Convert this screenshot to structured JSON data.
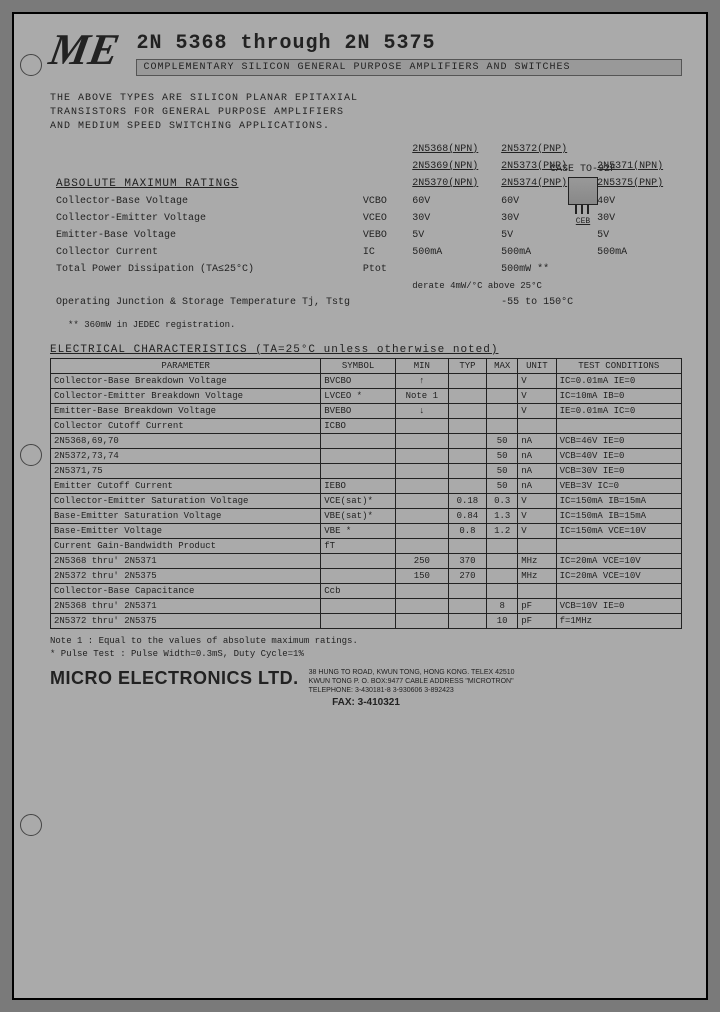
{
  "logo_text": "ME",
  "title": "2N 5368  through  2N 5375",
  "subtitle": "COMPLEMENTARY SILICON GENERAL PURPOSE AMPLIFIERS AND SWITCHES",
  "intro_line1": "THE ABOVE TYPES ARE SILICON PLANAR EPITAXIAL",
  "intro_line2": "TRANSISTORS FOR GENERAL PURPOSE AMPLIFIERS",
  "intro_line3": "AND MEDIUM SPEED SWITCHING APPLICATIONS.",
  "case_label": "CASE TO-92F",
  "case_pins": "CEB",
  "ratings": {
    "title": "ABSOLUTE MAXIMUM RATINGS",
    "groups": {
      "g1a": "2N5368(NPN)",
      "g1b": "2N5369(NPN)",
      "g1c": "2N5370(NPN)",
      "g2a": "2N5372(PNP)",
      "g2b": "2N5373(PNP)",
      "g2c": "2N5374(PNP)",
      "g3a": "2N5371(NPN)",
      "g3b": "2N5375(PNP)"
    },
    "rows": [
      {
        "label": "Collector-Base Voltage",
        "sym": "VCBO",
        "v1": "60V",
        "v2": "60V",
        "v3": "40V"
      },
      {
        "label": "Collector-Emitter Voltage",
        "sym": "VCEO",
        "v1": "30V",
        "v2": "30V",
        "v3": "30V"
      },
      {
        "label": "Emitter-Base Voltage",
        "sym": "VEBO",
        "v1": "5V",
        "v2": "5V",
        "v3": "5V"
      },
      {
        "label": "Collector Current",
        "sym": "IC",
        "v1": "500mA",
        "v2": "500mA",
        "v3": "500mA"
      }
    ],
    "power_label": "Total Power Dissipation (TA≤25°C)",
    "power_sym": "Ptot",
    "power_val": "500mW **",
    "power_derate": "derate 4mW/°C above 25°C",
    "temp_label": "Operating Junction & Storage Temperature Tj, Tstg",
    "temp_val": "-55 to 150°C",
    "footnote": "** 360mW in JEDEC registration."
  },
  "elec": {
    "title": "ELECTRICAL CHARACTERISTICS  (TA=25°C  unless otherwise noted)",
    "head": {
      "param": "PARAMETER",
      "sym": "SYMBOL",
      "min": "MIN",
      "typ": "TYP",
      "max": "MAX",
      "unit": "UNIT",
      "cond": "TEST CONDITIONS"
    },
    "rows": [
      {
        "p": "Collector-Base Breakdown Voltage",
        "s": "BVCBO",
        "min": "↑",
        "typ": "",
        "max": "",
        "u": "V",
        "c": "IC=0.01mA  IE=0"
      },
      {
        "p": "Collector-Emitter Breakdown Voltage",
        "s": "LVCEO *",
        "min": "Note 1",
        "typ": "",
        "max": "",
        "u": "V",
        "c": "IC=10mA   IB=0"
      },
      {
        "p": "Emitter-Base Breakdown Voltage",
        "s": "BVEBO",
        "min": "↓",
        "typ": "",
        "max": "",
        "u": "V",
        "c": "IE=0.01mA IC=0"
      },
      {
        "p": "Collector Cutoff Current",
        "s": "ICBO",
        "min": "",
        "typ": "",
        "max": "",
        "u": "",
        "c": ""
      },
      {
        "p": "            2N5368,69,70",
        "s": "",
        "min": "",
        "typ": "",
        "max": "50",
        "u": "nA",
        "c": "VCB=46V   IE=0"
      },
      {
        "p": "            2N5372,73,74",
        "s": "",
        "min": "",
        "typ": "",
        "max": "50",
        "u": "nA",
        "c": "VCB=40V   IE=0"
      },
      {
        "p": "            2N5371,75",
        "s": "",
        "min": "",
        "typ": "",
        "max": "50",
        "u": "nA",
        "c": "VCB=30V   IE=0"
      },
      {
        "p": "Emitter Cutoff Current",
        "s": "IEBO",
        "min": "",
        "typ": "",
        "max": "50",
        "u": "nA",
        "c": "VEB=3V    IC=0"
      },
      {
        "p": "Collector-Emitter Saturation Voltage",
        "s": "VCE(sat)*",
        "min": "",
        "typ": "0.18",
        "max": "0.3",
        "u": "V",
        "c": "IC=150mA  IB=15mA"
      },
      {
        "p": "Base-Emitter Saturation Voltage",
        "s": "VBE(sat)*",
        "min": "",
        "typ": "0.84",
        "max": "1.3",
        "u": "V",
        "c": "IC=150mA  IB=15mA"
      },
      {
        "p": "Base-Emitter Voltage",
        "s": "VBE *",
        "min": "",
        "typ": "0.8",
        "max": "1.2",
        "u": "V",
        "c": "IC=150mA  VCE=10V"
      },
      {
        "p": "Current Gain-Bandwidth Product",
        "s": "fT",
        "min": "",
        "typ": "",
        "max": "",
        "u": "",
        "c": ""
      },
      {
        "p": "       2N5368 thru' 2N5371",
        "s": "",
        "min": "250",
        "typ": "370",
        "max": "",
        "u": "MHz",
        "c": "IC=20mA   VCE=10V"
      },
      {
        "p": "       2N5372 thru' 2N5375",
        "s": "",
        "min": "150",
        "typ": "270",
        "max": "",
        "u": "MHz",
        "c": "IC=20mA   VCE=10V"
      },
      {
        "p": "Collector-Base Capacitance",
        "s": "Ccb",
        "min": "",
        "typ": "",
        "max": "",
        "u": "",
        "c": ""
      },
      {
        "p": "       2N5368 thru' 2N5371",
        "s": "",
        "min": "",
        "typ": "",
        "max": "8",
        "u": "pF",
        "c": "VCB=10V   IE=0"
      },
      {
        "p": "       2N5372 thru' 2N5375",
        "s": "",
        "min": "",
        "typ": "",
        "max": "10",
        "u": "pF",
        "c": "f=1MHz"
      }
    ],
    "note1": "Note 1 : Equal to the values of absolute maximum ratings.",
    "note2": "* Pulse Test : Pulse Width=0.3mS, Duty Cycle=1%"
  },
  "company": {
    "name": "MICRO ELECTRONICS LTD.",
    "addr1": "38 HUNG TO ROAD, KWUN TONG, HONG KONG.   TELEX 42510",
    "addr2": "KWUN TONG P. O. BOX:9477 CABLE ADDRESS \"MICROTRON\"",
    "addr3": "TELEPHONE:   3-430181-8   3-930606   3-892423",
    "fax": "FAX: 3-410321"
  }
}
